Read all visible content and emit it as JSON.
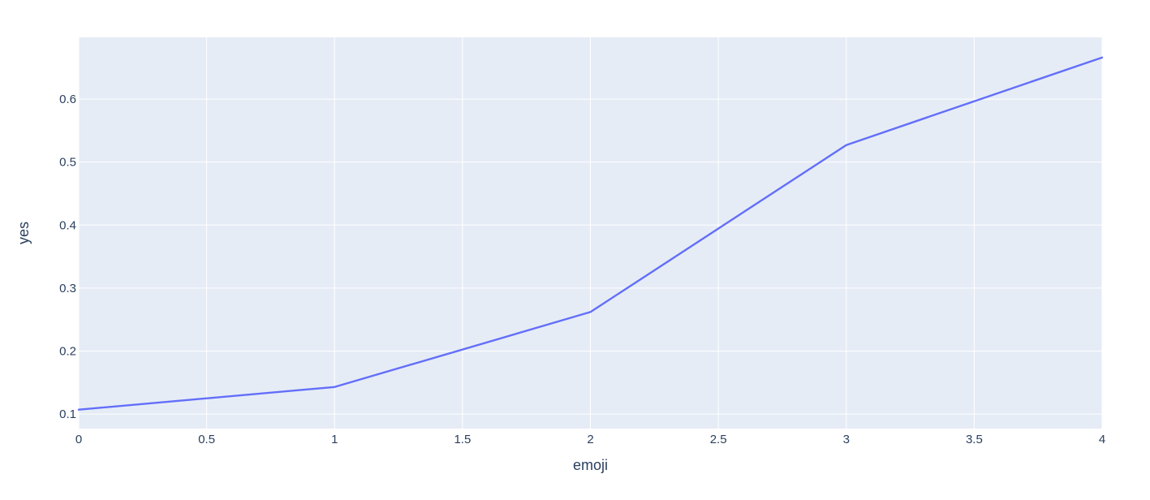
{
  "chart_data": {
    "type": "line",
    "title": "",
    "xlabel": "emoji",
    "ylabel": "yes",
    "x": [
      0,
      1,
      2,
      3,
      4
    ],
    "series": [
      {
        "values": [
          0.107,
          0.143,
          0.262,
          0.527,
          0.666
        ]
      }
    ],
    "xlim": [
      0,
      4
    ],
    "ylim": [
      0.077,
      0.698
    ],
    "x_ticks": [
      0,
      0.5,
      1,
      1.5,
      2,
      2.5,
      3,
      3.5,
      4
    ],
    "x_tick_labels": [
      "0",
      "0.5",
      "1",
      "1.5",
      "2",
      "2.5",
      "3",
      "3.5",
      "4"
    ],
    "y_ticks": [
      0.1,
      0.2,
      0.3,
      0.4,
      0.5,
      0.6
    ],
    "y_tick_labels": [
      "0.1",
      "0.2",
      "0.3",
      "0.4",
      "0.5",
      "0.6"
    ],
    "grid": true,
    "legend": "none",
    "colors": {
      "plot_background": "#E5ECF6",
      "grid": "#FFFFFF",
      "line": "#636EFA",
      "text": "#2A3F5F"
    }
  }
}
